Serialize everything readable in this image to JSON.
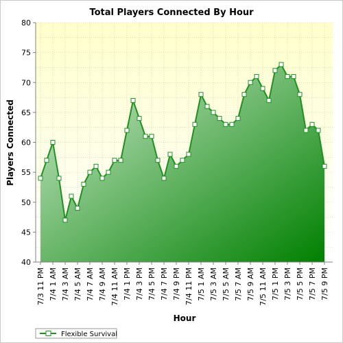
{
  "chart_data": {
    "type": "area",
    "title": "Total Players Connected By Hour",
    "xlabel": "Hour",
    "ylabel": "Players Connected",
    "ylim": [
      40,
      80
    ],
    "yticks": [
      40,
      45,
      50,
      55,
      60,
      65,
      70,
      75,
      80
    ],
    "grid": true,
    "legend_position": "bottom-left",
    "colors": {
      "line": "#1f8f1f",
      "fill_light": "#d2ecd2",
      "fill_dark": "#008000",
      "plot_bg_top": "#ffffcc",
      "plot_bg_bottom": "#ffffff",
      "grid": "#c8c8a0"
    },
    "x_tick_labels": [
      "7/3 11 PM",
      "7/4 1 AM",
      "7/4 3 AM",
      "7/4 5 AM",
      "7/4 7 AM",
      "7/4 9 AM",
      "7/4 11 AM",
      "7/4 1 PM",
      "7/4 3 PM",
      "7/4 5 PM",
      "7/4 7 PM",
      "7/4 9 PM",
      "7/4 11 PM",
      "7/5 1 AM",
      "7/5 3 AM",
      "7/5 5 AM",
      "7/5 7 AM",
      "7/5 9 AM",
      "7/5 11 AM",
      "7/5 1 PM",
      "7/5 3 PM",
      "7/5 5 PM",
      "7/5 7 PM",
      "7/5 9 PM"
    ],
    "series": [
      {
        "name": "Flexible Survival",
        "values": [
          54,
          57,
          60,
          54,
          47,
          51,
          49,
          53,
          55,
          56,
          54,
          55,
          57,
          57,
          62,
          67,
          64,
          61,
          61,
          57,
          54,
          58,
          56,
          57,
          58,
          63,
          68,
          66,
          65,
          64,
          63,
          63,
          64,
          68,
          70,
          71,
          69,
          67,
          72,
          73,
          71,
          71,
          68,
          62,
          63,
          62,
          56
        ]
      }
    ]
  }
}
